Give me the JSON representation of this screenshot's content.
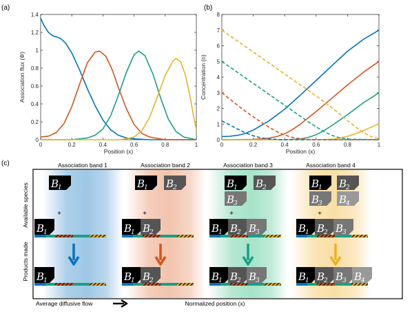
{
  "colors": {
    "blue": "#0072BD",
    "orange": "#D95319",
    "yellow": "#EDB120",
    "green": "#16A085"
  },
  "panel_a": {
    "label": "(a)"
  },
  "panel_b": {
    "label": "(b)"
  },
  "panel_c": {
    "label": "(c)",
    "bands": [
      {
        "title": "Association band 1",
        "available": [
          "1"
        ],
        "product": [
          "1"
        ],
        "color": "#9ec7e6"
      },
      {
        "title": "Association band 2",
        "available": [
          "1",
          "2"
        ],
        "product": [
          "1",
          "2"
        ],
        "color": "#f2c4ad"
      },
      {
        "title": "Association band 3",
        "available": [
          "1",
          "2",
          "3"
        ],
        "product": [
          "1",
          "2",
          "3"
        ],
        "color": "#a6e3c9"
      },
      {
        "title": "Association band 4",
        "available": [
          "1",
          "2",
          "3",
          "4"
        ],
        "product": [
          "1",
          "2",
          "3",
          "4"
        ],
        "color": "#f9dfa6"
      }
    ],
    "ylabel_top": "Available species",
    "ylabel_bottom": "Products made",
    "plus": "+",
    "letter": "B",
    "footer_left": "Average diffusive flow",
    "footer_center": "Normalized position (x)"
  },
  "chart_data": [
    {
      "type": "line",
      "xlabel": "Position (x)",
      "ylabel": "Association flux (Φ)",
      "xlim": [
        0,
        1
      ],
      "ylim": [
        0,
        1.4
      ],
      "xticks": [
        "0",
        "0.2",
        "0.4",
        "0.6",
        "0.8",
        "1"
      ],
      "yticks": [
        "0",
        "0.2",
        "0.4",
        "0.6",
        "0.8",
        "1",
        "1.2",
        "1.4"
      ],
      "series": [
        {
          "color": "#0072BD",
          "x": [
            0,
            0.02,
            0.05,
            0.08,
            0.1,
            0.13,
            0.16,
            0.2,
            0.25,
            0.3,
            0.35,
            0.4,
            0.45,
            0.5,
            0.55,
            0.6,
            0.7,
            0.8,
            0.9,
            1.0
          ],
          "y": [
            1.36,
            1.28,
            1.2,
            1.16,
            1.15,
            1.13,
            1.08,
            0.97,
            0.78,
            0.57,
            0.38,
            0.22,
            0.11,
            0.05,
            0.02,
            0.01,
            0.0,
            0.0,
            0.0,
            0.0
          ]
        },
        {
          "color": "#D95319",
          "x": [
            0,
            0.05,
            0.1,
            0.15,
            0.2,
            0.25,
            0.3,
            0.35,
            0.38,
            0.42,
            0.46,
            0.5,
            0.55,
            0.6,
            0.65,
            0.7,
            0.8,
            0.9,
            1.0
          ],
          "y": [
            0.03,
            0.04,
            0.08,
            0.18,
            0.37,
            0.62,
            0.86,
            0.98,
            0.99,
            0.93,
            0.78,
            0.58,
            0.35,
            0.17,
            0.07,
            0.03,
            0.0,
            0.0,
            0.0
          ]
        },
        {
          "color": "#16A085",
          "x": [
            0,
            0.2,
            0.3,
            0.35,
            0.4,
            0.45,
            0.5,
            0.55,
            0.6,
            0.63,
            0.67,
            0.72,
            0.77,
            0.82,
            0.87,
            0.92,
            1.0
          ],
          "y": [
            0.0,
            0.0,
            0.02,
            0.05,
            0.12,
            0.27,
            0.5,
            0.75,
            0.95,
            0.99,
            0.94,
            0.74,
            0.47,
            0.23,
            0.09,
            0.03,
            0.0
          ]
        },
        {
          "color": "#EDB120",
          "x": [
            0,
            0.4,
            0.5,
            0.55,
            0.6,
            0.65,
            0.7,
            0.75,
            0.8,
            0.85,
            0.87,
            0.9,
            0.93,
            0.96,
            0.98,
            1.0
          ],
          "y": [
            0.0,
            0.0,
            0.0,
            0.01,
            0.03,
            0.1,
            0.25,
            0.48,
            0.72,
            0.88,
            0.91,
            0.87,
            0.72,
            0.48,
            0.28,
            0.11
          ]
        }
      ]
    },
    {
      "type": "line",
      "xlabel": "Position (x)",
      "ylabel": "Concentration (n)",
      "xlim": [
        0,
        1
      ],
      "ylim": [
        0,
        8
      ],
      "xticks": [
        "0",
        "0.2",
        "0.4",
        "0.6",
        "0.8",
        "1"
      ],
      "yticks": [
        "0",
        "1",
        "2",
        "3",
        "4",
        "5",
        "6",
        "7",
        "8"
      ],
      "series": [
        {
          "color": "#0072BD",
          "style": "solid",
          "x": [
            0,
            0.05,
            0.1,
            0.15,
            0.2,
            0.3,
            0.4,
            0.5,
            0.6,
            0.7,
            0.8,
            0.9,
            1.0
          ],
          "y": [
            0.2,
            0.22,
            0.28,
            0.4,
            0.62,
            1.2,
            1.95,
            2.85,
            3.78,
            4.72,
            5.65,
            6.4,
            7.0
          ]
        },
        {
          "color": "#D95319",
          "style": "solid",
          "x": [
            0,
            0.2,
            0.3,
            0.35,
            0.4,
            0.45,
            0.5,
            0.6,
            0.7,
            0.8,
            0.9,
            1.0
          ],
          "y": [
            0.0,
            0.02,
            0.1,
            0.2,
            0.38,
            0.65,
            1.0,
            1.8,
            2.65,
            3.5,
            4.3,
            5.0
          ]
        },
        {
          "color": "#16A085",
          "style": "solid",
          "x": [
            0,
            0.4,
            0.5,
            0.55,
            0.6,
            0.65,
            0.7,
            0.8,
            0.9,
            1.0
          ],
          "y": [
            0.0,
            0.0,
            0.05,
            0.15,
            0.32,
            0.58,
            0.9,
            1.6,
            2.35,
            3.0
          ]
        },
        {
          "color": "#EDB120",
          "style": "solid",
          "x": [
            0,
            0.6,
            0.7,
            0.75,
            0.8,
            0.85,
            0.9,
            0.95,
            1.0
          ],
          "y": [
            0.0,
            0.0,
            0.03,
            0.1,
            0.22,
            0.38,
            0.58,
            0.8,
            1.02
          ]
        },
        {
          "color": "#0072BD",
          "style": "dashed",
          "x": [
            0,
            0.05,
            0.1,
            0.15,
            0.2,
            0.25,
            0.3,
            0.35,
            0.4,
            0.5,
            1.0
          ],
          "y": [
            1.2,
            0.95,
            0.68,
            0.44,
            0.25,
            0.12,
            0.05,
            0.02,
            0.0,
            0.0,
            0.0
          ]
        },
        {
          "color": "#D95319",
          "style": "dashed",
          "x": [
            0,
            0.05,
            0.1,
            0.15,
            0.2,
            0.25,
            0.3,
            0.35,
            0.4,
            0.45,
            0.5,
            0.55,
            0.6,
            1.0
          ],
          "y": [
            3.0,
            2.6,
            2.2,
            1.82,
            1.46,
            1.12,
            0.8,
            0.52,
            0.3,
            0.15,
            0.06,
            0.02,
            0.0,
            0.0
          ]
        },
        {
          "color": "#16A085",
          "style": "dashed",
          "x": [
            0,
            0.1,
            0.2,
            0.3,
            0.4,
            0.5,
            0.55,
            0.6,
            0.65,
            0.7,
            0.75,
            0.8,
            1.0
          ],
          "y": [
            5.0,
            4.3,
            3.6,
            2.9,
            2.2,
            1.5,
            1.15,
            0.82,
            0.52,
            0.28,
            0.12,
            0.04,
            0.0
          ]
        },
        {
          "color": "#EDB120",
          "style": "dashed",
          "x": [
            0,
            0.1,
            0.2,
            0.3,
            0.4,
            0.5,
            0.6,
            0.7,
            0.75,
            0.8,
            0.85,
            0.9,
            0.95,
            1.0
          ],
          "y": [
            7.0,
            6.3,
            5.6,
            4.9,
            4.2,
            3.5,
            2.8,
            2.05,
            1.65,
            1.22,
            0.82,
            0.46,
            0.2,
            0.05
          ]
        }
      ]
    }
  ]
}
